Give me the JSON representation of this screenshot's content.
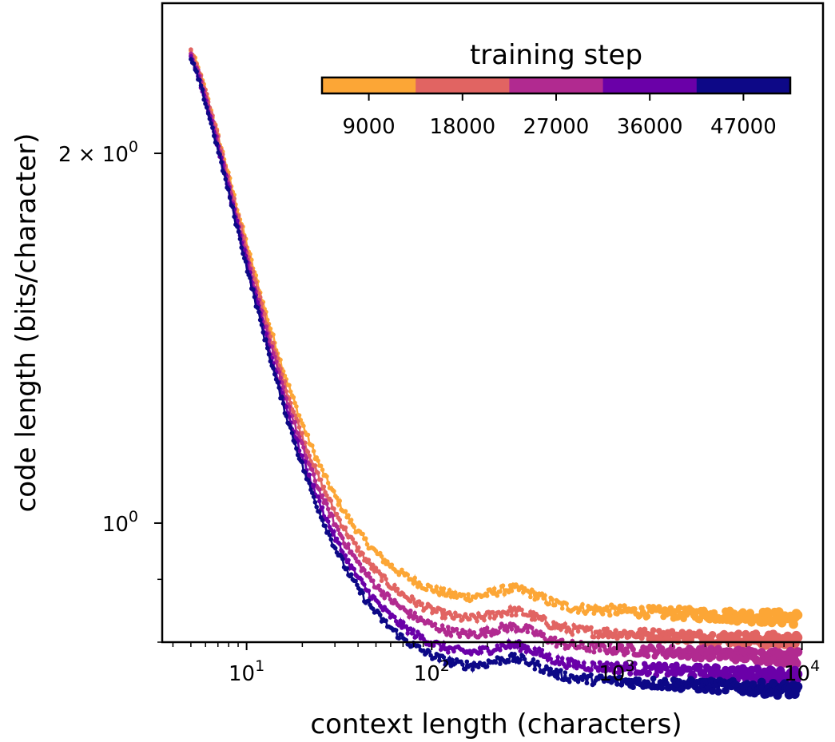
{
  "chart_data": {
    "type": "line",
    "xscale": "log",
    "yscale": "log",
    "xlabel": "context length (characters)",
    "ylabel": "code length (bits/character)",
    "xlim": [
      3.5,
      13000
    ],
    "ylim": [
      0.8,
      2.65
    ],
    "x_ticks": [
      {
        "value": 10,
        "label": "10^1"
      },
      {
        "value": 100,
        "label": "10^2"
      },
      {
        "value": 1000,
        "label": "10^3"
      },
      {
        "value": 10000,
        "label": "10^4"
      }
    ],
    "y_ticks": [
      {
        "value": 2,
        "label": "2 × 10^0"
      },
      {
        "value": 1,
        "label": "10^0"
      }
    ],
    "grid": false,
    "colorbar": {
      "title": "training step",
      "placement": "top-right",
      "ticks": [
        "9000",
        "18000",
        "27000",
        "36000",
        "47000"
      ]
    },
    "series": [
      {
        "color": "#fca636",
        "start": 2.42,
        "plateau": 0.853,
        "drop": 0.88,
        "decay": 6.2,
        "mid": 1.01
      },
      {
        "color": "#e16462",
        "start": 2.42,
        "plateau": 0.818,
        "drop": 0.88,
        "decay": 6.2,
        "mid": 0.965
      },
      {
        "color": "#b12a90",
        "start": 2.4,
        "plateau": 0.794,
        "drop": 0.88,
        "decay": 6.2,
        "mid": 0.935
      },
      {
        "color": "#6a00a8",
        "start": 2.39,
        "plateau": 0.767,
        "drop": 0.88,
        "decay": 6.2,
        "mid": 0.905
      },
      {
        "color": "#0d0887",
        "start": 2.38,
        "plateau": 0.748,
        "drop": 0.88,
        "decay": 6.2,
        "mid": 0.885
      }
    ]
  }
}
